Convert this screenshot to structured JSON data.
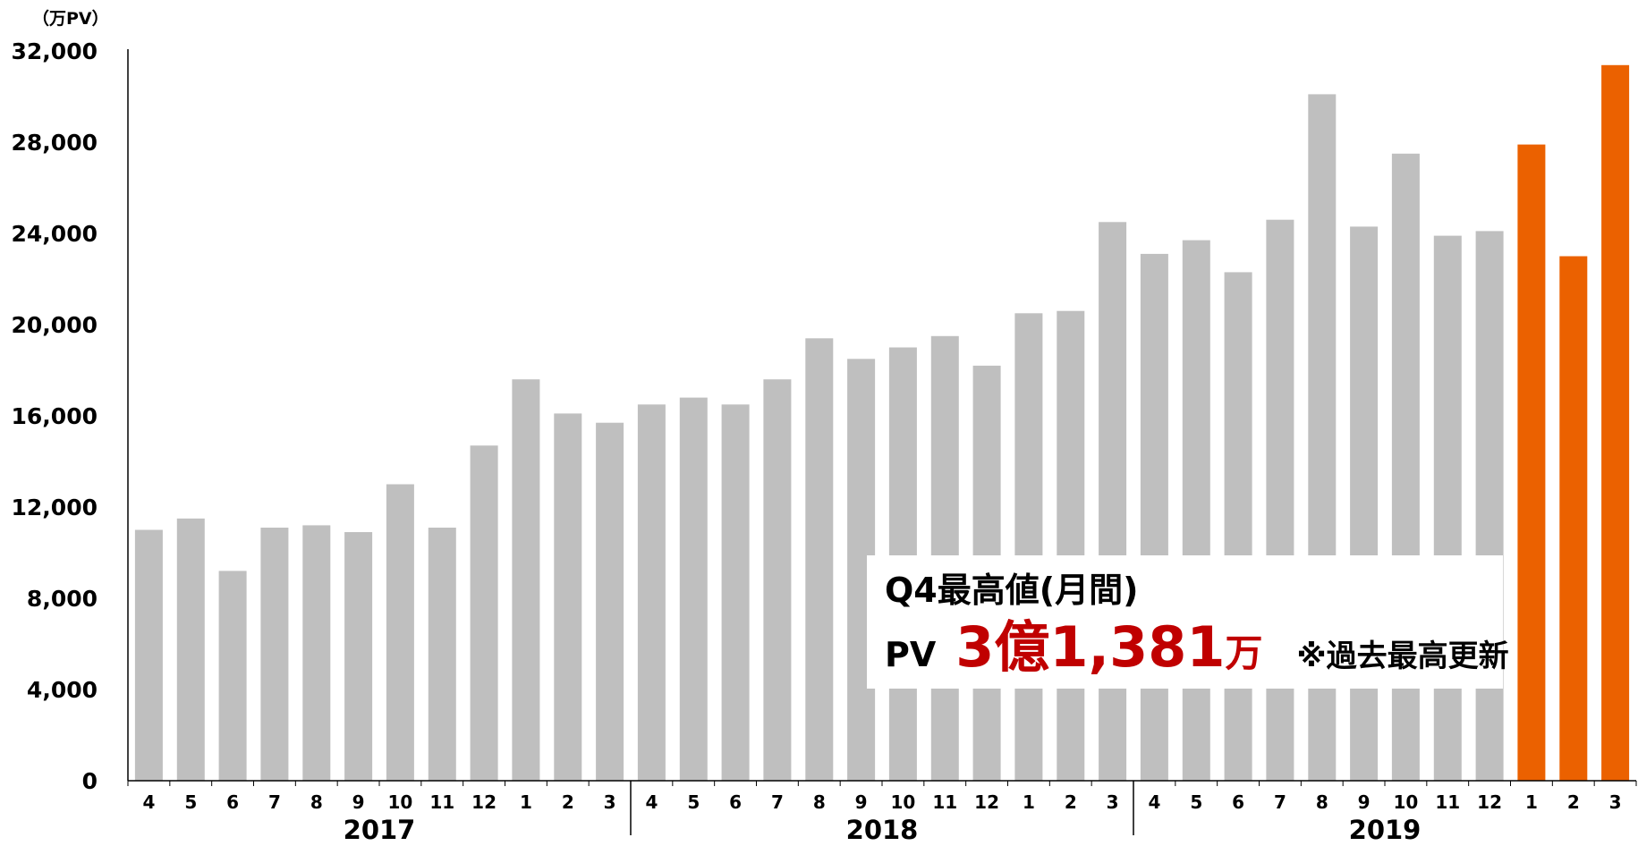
{
  "chart_data": {
    "type": "bar",
    "unit_label": "（万PV）",
    "ylim": [
      0,
      32000
    ],
    "y_ticks": [
      "0",
      "4,000",
      "8,000",
      "12,000",
      "16,000",
      "20,000",
      "24,000",
      "28,000",
      "32,000"
    ],
    "categories": [
      "4",
      "5",
      "6",
      "7",
      "8",
      "9",
      "10",
      "11",
      "12",
      "1",
      "2",
      "3",
      "4",
      "5",
      "6",
      "7",
      "8",
      "9",
      "10",
      "11",
      "12",
      "1",
      "2",
      "3",
      "4",
      "5",
      "6",
      "7",
      "8",
      "9",
      "10",
      "11",
      "12",
      "1",
      "2",
      "3"
    ],
    "values": [
      11000,
      11500,
      9200,
      11100,
      11200,
      10900,
      13000,
      11100,
      14700,
      17600,
      16100,
      15700,
      16500,
      16800,
      16500,
      17600,
      19400,
      18500,
      19000,
      19500,
      18200,
      20500,
      20600,
      24500,
      23100,
      23700,
      22300,
      24600,
      30100,
      24300,
      27500,
      23900,
      24100,
      27900,
      23000,
      31381
    ],
    "highlight": [
      false,
      false,
      false,
      false,
      false,
      false,
      false,
      false,
      false,
      false,
      false,
      false,
      false,
      false,
      false,
      false,
      false,
      false,
      false,
      false,
      false,
      false,
      false,
      false,
      false,
      false,
      false,
      false,
      false,
      false,
      false,
      false,
      false,
      true,
      true,
      true
    ],
    "year_groups": [
      {
        "label": "2017",
        "start": 0,
        "count": 12
      },
      {
        "label": "2018",
        "start": 12,
        "count": 12
      },
      {
        "label": "2019",
        "start": 24,
        "count": 12
      }
    ],
    "colors": {
      "bar": "#bfbfbf",
      "highlight": "#eb6100",
      "axis": "#000000",
      "callout_accent": "#c00000"
    },
    "grid": false
  },
  "callout": {
    "title": "Q4最高値(月間)",
    "prefix": "PV",
    "value_part1": "3億",
    "value_part2": "1,381",
    "value_unit": "万",
    "note": "※過去最高更新"
  }
}
